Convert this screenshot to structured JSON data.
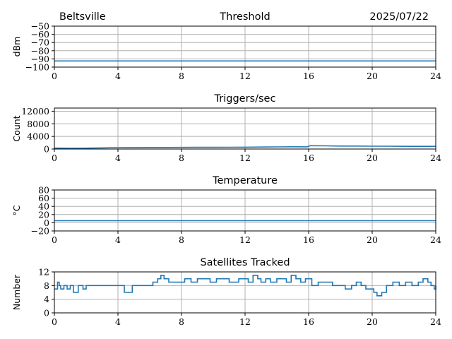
{
  "header": {
    "site": "Beltsville",
    "date": "2025/07/22"
  },
  "colors": {
    "series": "#1f77b4",
    "grid": "#b0b0b0",
    "axes": "#000000"
  },
  "chart_data": [
    {
      "type": "line",
      "title": "Threshold",
      "xlabel": "",
      "ylabel": "dBm",
      "xlim": [
        0,
        24
      ],
      "ylim": [
        -100,
        -50
      ],
      "xticks": [
        "0",
        "4",
        "8",
        "12",
        "16",
        "20",
        "24"
      ],
      "yticks": [
        "−50",
        "−60",
        "−70",
        "−80",
        "−90",
        "−100"
      ],
      "grid": true,
      "series": [
        {
          "x": [
            0,
            24
          ],
          "y": [
            -92.5,
            -92.5
          ]
        }
      ]
    },
    {
      "type": "line",
      "title": "Triggers/sec",
      "xlabel": "",
      "ylabel": "Count",
      "xlim": [
        0,
        24
      ],
      "ylim": [
        0,
        13000
      ],
      "xticks": [
        "0",
        "4",
        "8",
        "12",
        "16",
        "20",
        "24"
      ],
      "yticks": [
        "0",
        "4000",
        "8000",
        "12000"
      ],
      "grid": true,
      "series": [
        {
          "x": [
            0,
            1,
            2,
            3,
            4,
            5,
            6,
            7,
            8,
            9,
            10,
            11,
            12,
            13,
            14,
            15,
            15.9,
            16.1,
            17,
            18,
            19,
            20,
            21,
            22,
            23,
            24
          ],
          "y": [
            300,
            250,
            280,
            350,
            450,
            480,
            500,
            500,
            520,
            530,
            540,
            560,
            580,
            620,
            680,
            720,
            700,
            1050,
            1000,
            950,
            950,
            900,
            900,
            850,
            850,
            850
          ]
        }
      ]
    },
    {
      "type": "line",
      "title": "Temperature",
      "xlabel": "",
      "ylabel": "°C",
      "xlim": [
        0,
        24
      ],
      "ylim": [
        -20,
        80
      ],
      "xticks": [
        "0",
        "4",
        "8",
        "12",
        "16",
        "20",
        "24"
      ],
      "yticks": [
        "80",
        "60",
        "40",
        "20",
        "0",
        "−20"
      ],
      "grid": true,
      "series": [
        {
          "x": [
            0,
            24
          ],
          "y": [
            5,
            5
          ]
        }
      ]
    },
    {
      "type": "line",
      "title": "Satellites Tracked",
      "xlabel": "",
      "ylabel": "Number",
      "xlim": [
        0,
        24
      ],
      "ylim": [
        0,
        12
      ],
      "xticks": [
        "0",
        "4",
        "8",
        "12",
        "16",
        "20",
        "24"
      ],
      "yticks": [
        "12",
        "8",
        "4",
        "0"
      ],
      "grid": true,
      "series": [
        {
          "x": [
            0,
            0.2,
            0.3,
            0.4,
            0.6,
            0.8,
            1.0,
            1.2,
            1.5,
            1.8,
            2.0,
            2.2,
            2.5,
            3.0,
            3.5,
            4.0,
            4.4,
            4.9,
            5.3,
            5.8,
            6.2,
            6.5,
            6.7,
            6.9,
            7.2,
            7.8,
            8.2,
            8.6,
            9.0,
            9.4,
            9.8,
            10.2,
            10.6,
            11.0,
            11.3,
            11.6,
            11.9,
            12.2,
            12.5,
            12.8,
            13.0,
            13.3,
            13.6,
            14.0,
            14.3,
            14.6,
            14.9,
            15.2,
            15.5,
            15.8,
            16.2,
            16.6,
            17.0,
            17.5,
            17.9,
            18.3,
            18.7,
            19.0,
            19.3,
            19.6,
            19.9,
            20.1,
            20.3,
            20.6,
            20.9,
            21.3,
            21.7,
            22.1,
            22.5,
            22.9,
            23.2,
            23.5,
            23.7,
            23.9,
            24
          ],
          "y": [
            7,
            9,
            8,
            7,
            8,
            7,
            8,
            6,
            8,
            7,
            8,
            8,
            8,
            8,
            8,
            8,
            6,
            8,
            8,
            8,
            9,
            10,
            11,
            10,
            9,
            9,
            10,
            9,
            10,
            10,
            9,
            10,
            10,
            9,
            9,
            10,
            10,
            9,
            11,
            10,
            9,
            10,
            9,
            10,
            10,
            9,
            11,
            10,
            9,
            10,
            8,
            9,
            9,
            8,
            8,
            7,
            8,
            9,
            8,
            7,
            7,
            6,
            5,
            6,
            8,
            9,
            8,
            9,
            8,
            9,
            10,
            9,
            8,
            7,
            8
          ]
        }
      ]
    }
  ]
}
